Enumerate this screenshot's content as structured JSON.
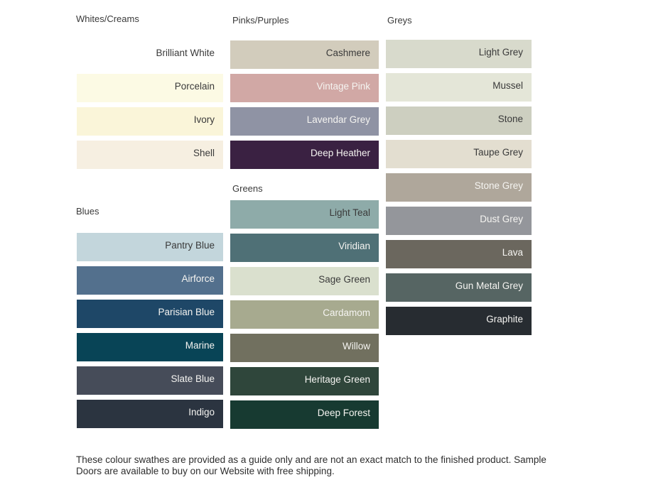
{
  "labels": {
    "dark_text": "#3a3a3a",
    "light_text": "#f5f4f1"
  },
  "note": {
    "lines": [
      "These colour swathes are provided as a guide only and are not an exact match to the finished product.  Sample",
      "Doors are available to buy on our Website with free shipping."
    ],
    "color": "#2e2e2e"
  },
  "groups": [
    {
      "title": "Whites/Creams",
      "swatches": [
        {
          "name": "Brilliant White",
          "hex": "#ffffff",
          "text": "#3a3a3a"
        },
        {
          "name": "Porcelain",
          "hex": "#fcfae4",
          "text": "#3a3a3a"
        },
        {
          "name": "Ivory",
          "hex": "#faf5d9",
          "text": "#3a3a3a"
        },
        {
          "name": "Shell",
          "hex": "#f6efe1",
          "text": "#3a3a3a"
        }
      ]
    },
    {
      "title": "Blues",
      "swatches": [
        {
          "name": "Pantry Blue",
          "hex": "#c3d6dc",
          "text": "#3a3a3a"
        },
        {
          "name": "Airforce",
          "hex": "#53708d",
          "text": "#f5f4f1"
        },
        {
          "name": "Parisian Blue",
          "hex": "#1e4767",
          "text": "#f5f4f1"
        },
        {
          "name": "Marine",
          "hex": "#084456",
          "text": "#f5f4f1"
        },
        {
          "name": "Slate Blue",
          "hex": "#464c59",
          "text": "#f5f4f1"
        },
        {
          "name": "Indigo",
          "hex": "#2b3440",
          "text": "#f5f4f1"
        }
      ]
    },
    {
      "title": "Pinks/Purples",
      "swatches": [
        {
          "name": "Cashmere",
          "hex": "#d2ccbc",
          "text": "#3a3a3a"
        },
        {
          "name": "Vintage Pink",
          "hex": "#d1a8a5",
          "text": "#f5f4f1"
        },
        {
          "name": "Lavendar Grey",
          "hex": "#8f93a4",
          "text": "#f5f4f1"
        },
        {
          "name": "Deep Heather",
          "hex": "#3a2142",
          "text": "#f5f4f1"
        }
      ]
    },
    {
      "title": "Greens",
      "swatches": [
        {
          "name": "Light Teal",
          "hex": "#8eaba9",
          "text": "#3a3a3a"
        },
        {
          "name": "Viridian",
          "hex": "#4f7076",
          "text": "#f5f4f1"
        },
        {
          "name": "Sage Green",
          "hex": "#dae0ce",
          "text": "#3a3a3a"
        },
        {
          "name": "Cardamom",
          "hex": "#a7aa8f",
          "text": "#f5f4f1"
        },
        {
          "name": "Willow",
          "hex": "#71705f",
          "text": "#f5f4f1"
        },
        {
          "name": "Heritage Green",
          "hex": "#2f463b",
          "text": "#f5f4f1"
        },
        {
          "name": "Deep Forest",
          "hex": "#173a31",
          "text": "#f5f4f1"
        }
      ]
    },
    {
      "title": "Greys",
      "swatches": [
        {
          "name": "Light Grey",
          "hex": "#d8dacc",
          "text": "#3a3a3a"
        },
        {
          "name": "Mussel",
          "hex": "#e4e6d8",
          "text": "#3a3a3a"
        },
        {
          "name": "Stone",
          "hex": "#cdcfc0",
          "text": "#3a3a3a"
        },
        {
          "name": "Taupe Grey",
          "hex": "#e3ded0",
          "text": "#3a3a3a"
        },
        {
          "name": "Stone Grey",
          "hex": "#afa79b",
          "text": "#f5f4f1"
        },
        {
          "name": "Dust Grey",
          "hex": "#94969b",
          "text": "#f5f4f1"
        },
        {
          "name": "Lava",
          "hex": "#6b675e",
          "text": "#f5f4f1"
        },
        {
          "name": "Gun Metal Grey",
          "hex": "#566563",
          "text": "#f5f4f1"
        },
        {
          "name": "Graphite",
          "hex": "#272c31",
          "text": "#f5f4f1"
        }
      ]
    }
  ]
}
